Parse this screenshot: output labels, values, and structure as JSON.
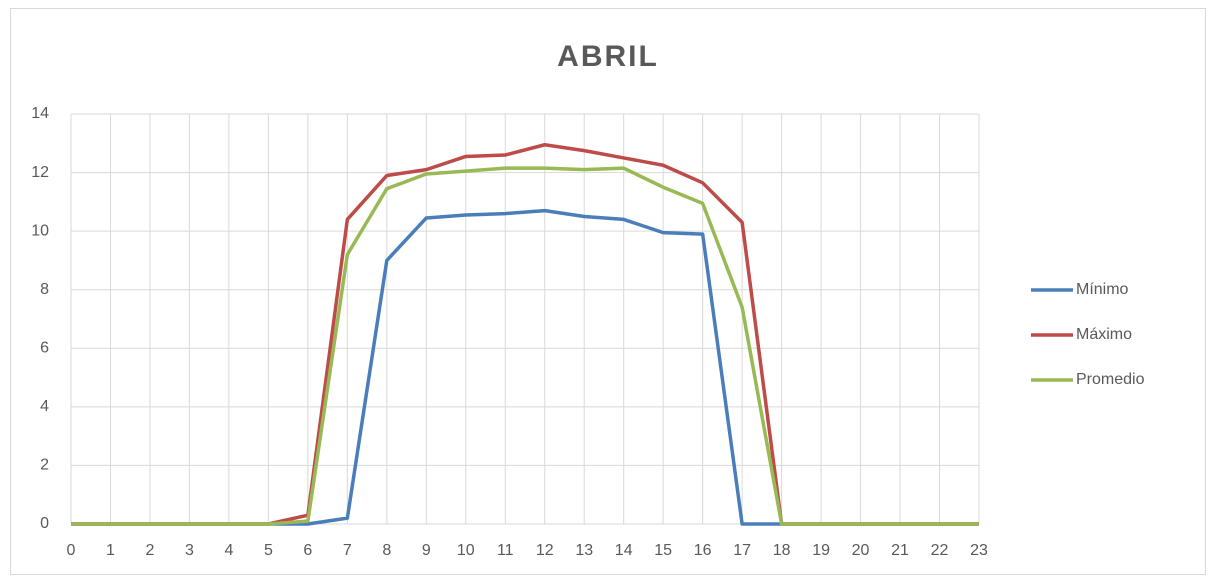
{
  "chart_data": {
    "type": "line",
    "title": "ABRIL",
    "categories": [
      "0",
      "1",
      "2",
      "3",
      "4",
      "5",
      "6",
      "7",
      "8",
      "9",
      "10",
      "11",
      "12",
      "13",
      "14",
      "15",
      "16",
      "17",
      "18",
      "19",
      "20",
      "21",
      "22",
      "23"
    ],
    "series": [
      {
        "name": "Mínimo",
        "color": "#4a7ebb",
        "values": [
          0,
          0,
          0,
          0,
          0,
          0,
          0,
          0.2,
          9.0,
          10.45,
          10.55,
          10.6,
          10.7,
          10.5,
          10.4,
          9.95,
          9.9,
          0,
          0,
          0,
          0,
          0,
          0,
          0
        ]
      },
      {
        "name": "Máximo",
        "color": "#be4b48",
        "values": [
          0,
          0,
          0,
          0,
          0,
          0,
          0.3,
          10.4,
          11.9,
          12.1,
          12.55,
          12.6,
          12.95,
          12.75,
          12.5,
          12.25,
          11.65,
          10.3,
          0,
          0,
          0,
          0,
          0,
          0
        ]
      },
      {
        "name": "Promedio",
        "color": "#98b954",
        "values": [
          0,
          0,
          0,
          0,
          0,
          0,
          0.1,
          9.2,
          11.45,
          11.95,
          12.05,
          12.15,
          12.15,
          12.1,
          12.15,
          11.5,
          10.95,
          7.4,
          0,
          0,
          0,
          0,
          0,
          0
        ]
      }
    ],
    "ylim": [
      0,
      14
    ],
    "yticks": [
      0,
      2,
      4,
      6,
      8,
      10,
      12,
      14
    ],
    "grid": true,
    "legend": "right"
  }
}
